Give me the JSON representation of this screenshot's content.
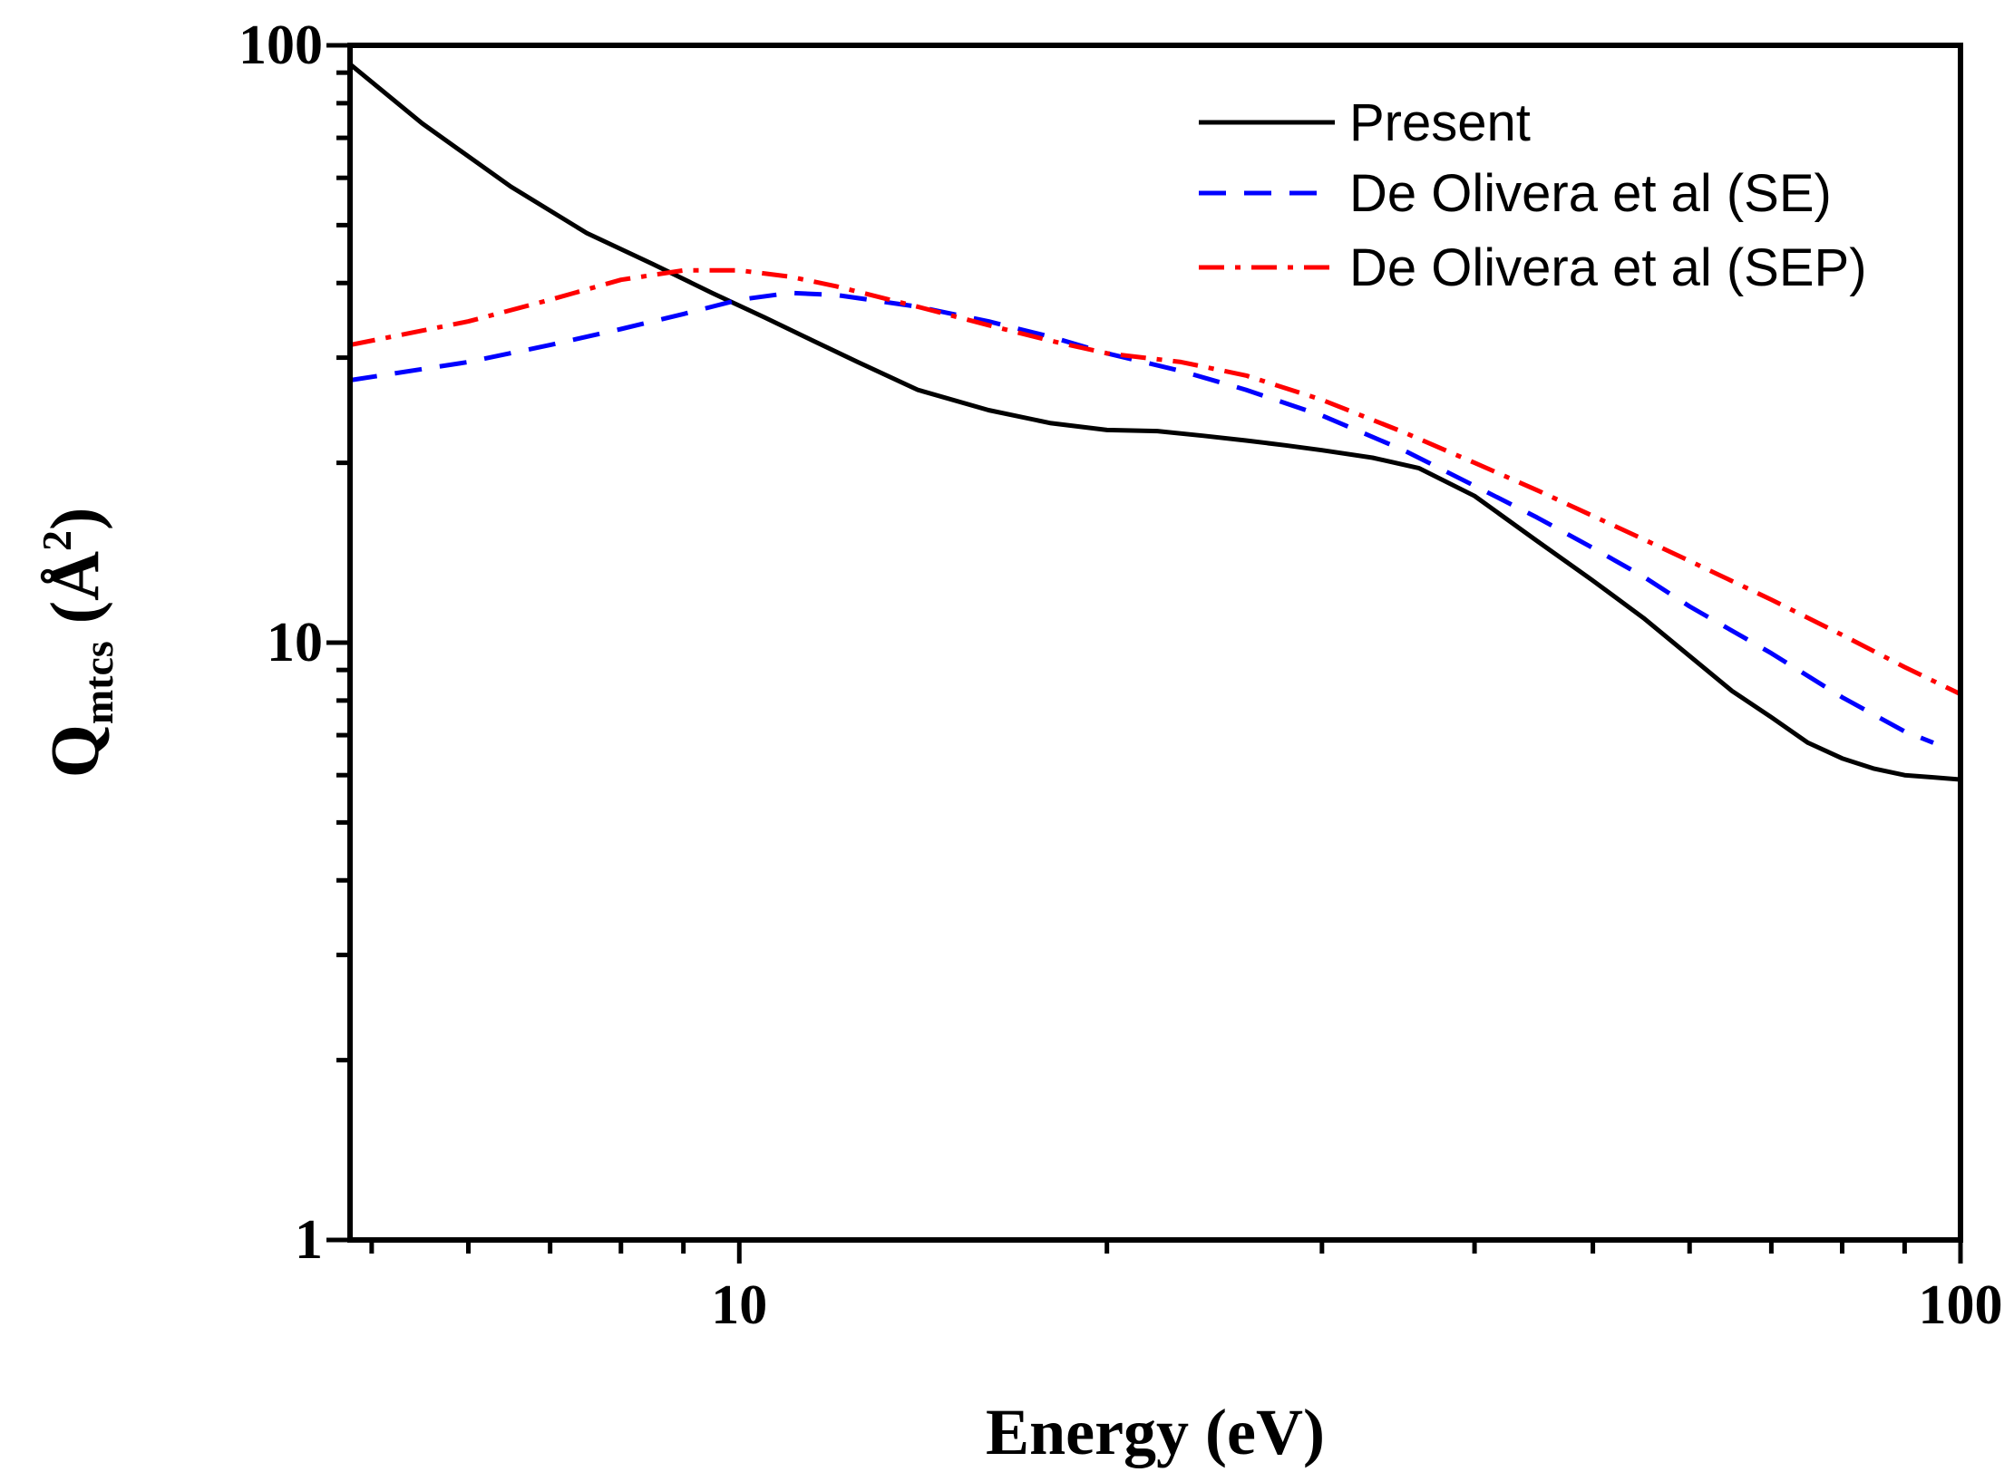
{
  "chart_data": {
    "type": "line",
    "title": "",
    "xlabel": "Energy (eV)",
    "ylabel": {
      "main": "Q",
      "sub": "mtcs",
      "unit_open": " (",
      "unit": "Å",
      "sup": "2",
      "unit_close": ")"
    },
    "xscale": "log",
    "yscale": "log",
    "xlim": [
      4.8,
      100
    ],
    "ylim": [
      1,
      100
    ],
    "x_ticks": [
      {
        "value": 10,
        "label": "10"
      },
      {
        "value": 100,
        "label": "100"
      }
    ],
    "y_ticks": [
      {
        "value": 1,
        "label": "1"
      },
      {
        "value": 10,
        "label": "10"
      },
      {
        "value": 100,
        "label": "100"
      }
    ],
    "grid": false,
    "legend": {
      "position": "top-right"
    },
    "series": [
      {
        "name": "Present",
        "color": "#000000",
        "style": "solid",
        "x": [
          4.8,
          5.5,
          6.5,
          7.5,
          8.5,
          9.5,
          10.5,
          11.5,
          12.5,
          14,
          16,
          18,
          20,
          22,
          24,
          26,
          28,
          30,
          33,
          36,
          40,
          45,
          50,
          55,
          60,
          65,
          70,
          75,
          80,
          85,
          90,
          95,
          100
        ],
        "y": [
          93,
          74,
          58,
          48.5,
          43,
          38.5,
          35,
          32,
          29.5,
          26.5,
          24.5,
          23.3,
          22.7,
          22.6,
          22.2,
          21.8,
          21.4,
          21,
          20.4,
          19.6,
          17.6,
          14.8,
          12.7,
          11,
          9.5,
          8.3,
          7.5,
          6.8,
          6.4,
          6.15,
          6.0,
          5.95,
          5.9
        ]
      },
      {
        "name": "De Olivera et al (SE)",
        "color": "#0000ff",
        "style": "dashed",
        "x": [
          4.8,
          6,
          7,
          8,
          9,
          10,
          11,
          12,
          14,
          16,
          18,
          20,
          23,
          26,
          30,
          35,
          40,
          45,
          50,
          55,
          60,
          70,
          80,
          90,
          95
        ],
        "y": [
          27.5,
          29.5,
          31.5,
          33.5,
          35.5,
          37.5,
          38.5,
          38.2,
          36.5,
          34.5,
          32.5,
          30.5,
          28.5,
          26.5,
          24,
          21,
          18.3,
          16.2,
          14.4,
          12.9,
          11.5,
          9.6,
          8.1,
          7.1,
          6.8
        ]
      },
      {
        "name": "De Olivera et al (SEP)",
        "color": "#ff0000",
        "style": "dashdot",
        "x": [
          4.8,
          6,
          7,
          8,
          9,
          10,
          11,
          12,
          14,
          16,
          18,
          20,
          23,
          26,
          30,
          35,
          40,
          45,
          50,
          55,
          60,
          70,
          80,
          90,
          100
        ],
        "y": [
          31.5,
          34.5,
          37.5,
          40.5,
          42,
          42,
          41,
          39.5,
          36.5,
          34,
          32,
          30.5,
          29.5,
          28,
          25.5,
          22.5,
          20,
          18,
          16.3,
          14.9,
          13.7,
          11.8,
          10.3,
          9.1,
          8.2
        ]
      }
    ]
  }
}
